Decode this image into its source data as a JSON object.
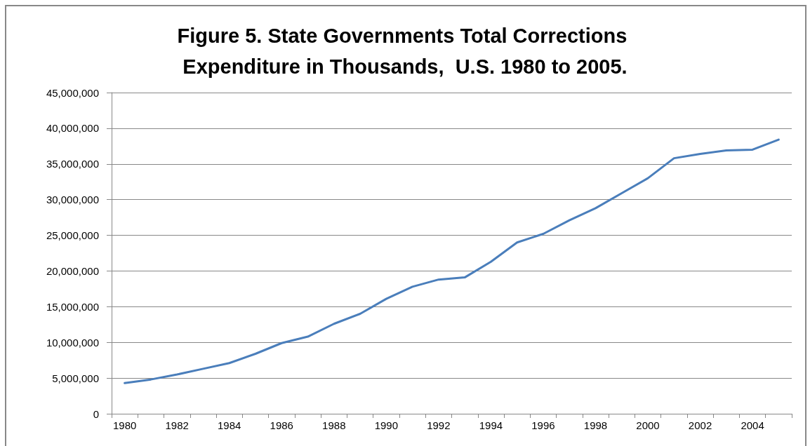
{
  "chart_data": {
    "type": "line",
    "title": "Figure 5. State Governments Total Corrections Expenditure in Thousands,  U.S. 1980 to 2005.",
    "categories": [
      "1980",
      null,
      "1982",
      null,
      "1984",
      null,
      "1986",
      null,
      "1988",
      null,
      "1990",
      null,
      "1992",
      null,
      "1994",
      null,
      "1996",
      null,
      "1998",
      null,
      "2000",
      null,
      "2002",
      null,
      "2004",
      null
    ],
    "values": [
      4300000,
      4800000,
      5500000,
      6300000,
      7100000,
      8400000,
      9900000,
      10800000,
      12600000,
      14000000,
      16100000,
      17800000,
      18800000,
      19100000,
      21300000,
      24000000,
      25200000,
      27100000,
      28800000,
      30900000,
      33000000,
      35800000,
      36400000,
      36900000,
      37000000,
      38400000
    ],
    "color": "#4a7ebb",
    "ylim": [
      0,
      45000000
    ],
    "yticks": [
      0,
      {
        "value": 5000000,
        "label": "5,000,000"
      },
      {
        "value": 10000000,
        "label": "10,000,000"
      },
      {
        "value": 15000000,
        "label": "15,000,000"
      },
      {
        "value": 20000000,
        "label": "20,000,000"
      },
      {
        "value": 25000000,
        "label": "25,000,000"
      },
      {
        "value": 30000000,
        "label": "30,000,000"
      },
      {
        "value": 35000000,
        "label": "35,000,000"
      },
      {
        "value": 40000000,
        "label": "40,000,000"
      },
      {
        "value": 45000000,
        "label": "45,000,000"
      }
    ],
    "grid": "y",
    "marker": "none"
  }
}
